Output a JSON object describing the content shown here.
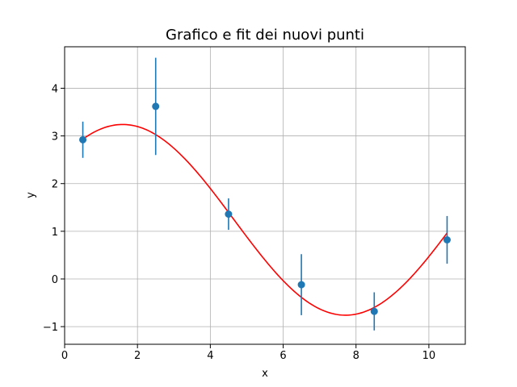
{
  "chart_data": {
    "type": "scatter",
    "title": "Grafico e fit dei nuovi punti",
    "xlabel": "x",
    "ylabel": "y",
    "xlim": [
      0,
      11
    ],
    "ylim": [
      -1.37,
      4.87
    ],
    "grid": true,
    "x_ticks": [
      0,
      2,
      4,
      6,
      8,
      10
    ],
    "x_tick_labels": [
      "0",
      "2",
      "4",
      "6",
      "8",
      "10"
    ],
    "y_ticks": [
      -1,
      0,
      1,
      2,
      3,
      4
    ],
    "y_tick_labels": [
      "−1",
      "0",
      "1",
      "2",
      "3",
      "4"
    ],
    "points": {
      "color": "#1f77b4",
      "x": [
        0.5,
        2.5,
        4.5,
        6.5,
        8.5,
        10.5
      ],
      "y": [
        2.92,
        3.62,
        1.36,
        -0.12,
        -0.68,
        0.82
      ],
      "yerr": [
        0.38,
        1.02,
        0.33,
        0.64,
        0.4,
        0.5
      ]
    },
    "fit": {
      "color": "#ff0000",
      "x_range": [
        0.5,
        10.5
      ],
      "model": "A*sin(w*x+phi)+c",
      "params": {
        "A": 2.0,
        "w": 0.5136,
        "phi": 0.7522,
        "c": 1.24
      }
    }
  }
}
